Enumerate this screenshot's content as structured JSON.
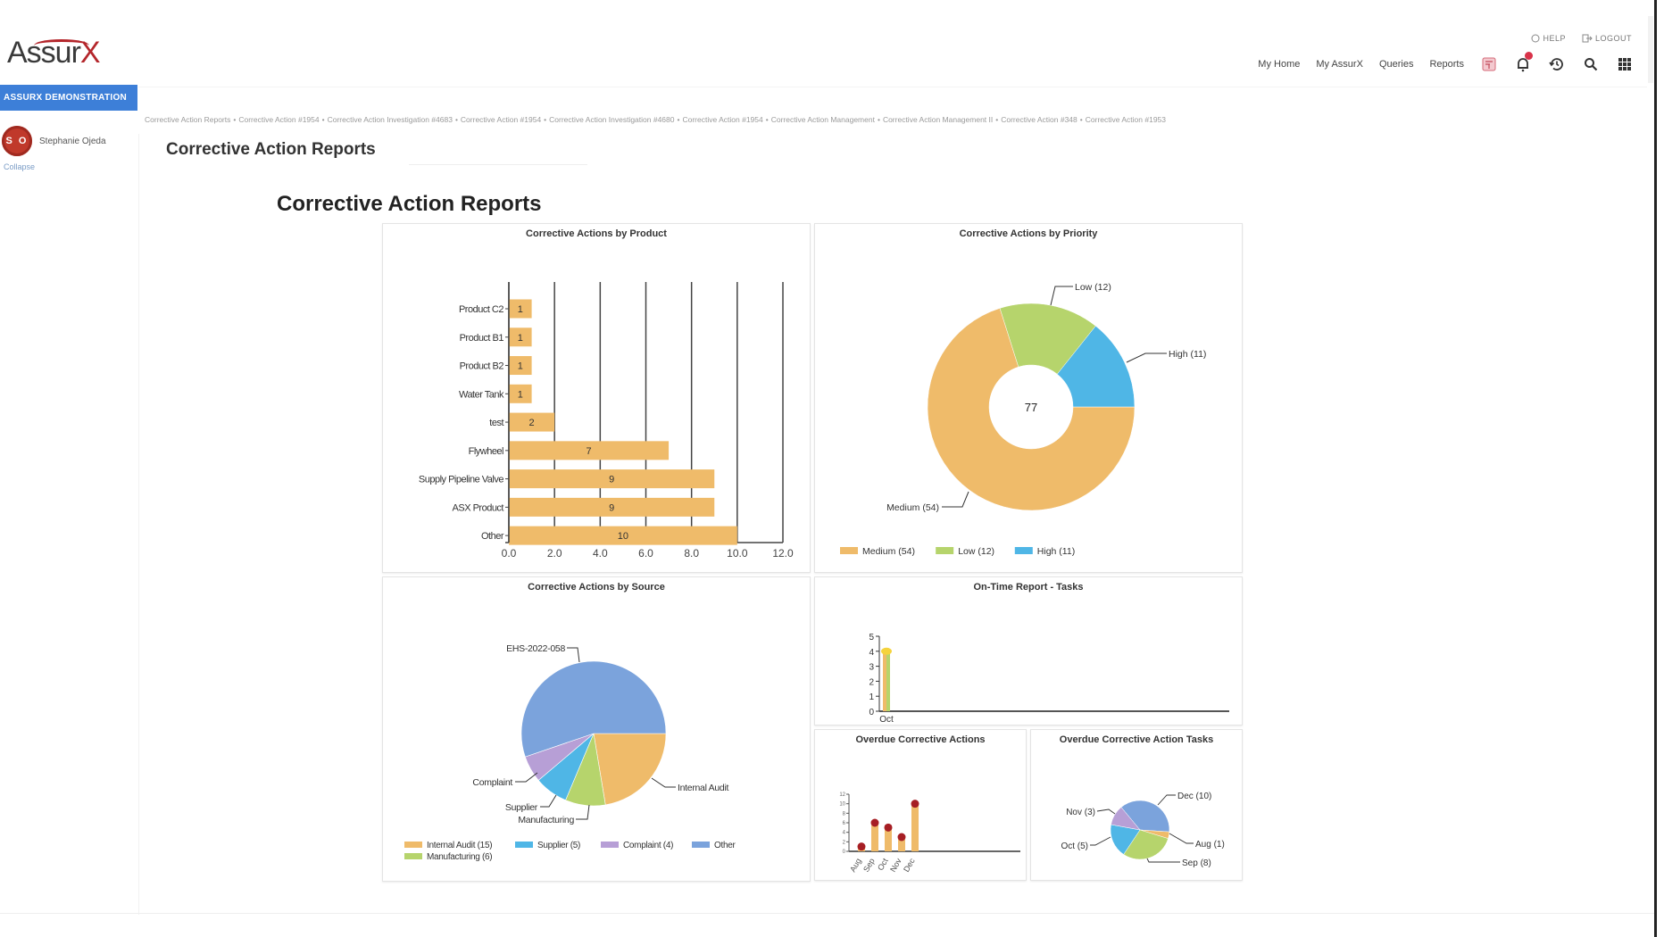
{
  "app": {
    "logo_text": "Assur",
    "logo_x": "X",
    "demo_button": "ASSURX DEMONSTRATION",
    "user": {
      "initials": "S O",
      "name": "Stephanie Ojeda"
    },
    "collapse_label": "Collapse",
    "top_links": {
      "help": "HELP",
      "logout": "LOGOUT"
    },
    "nav": [
      "My Home",
      "My AssurX",
      "Queries",
      "Reports"
    ],
    "icons": [
      "calendar-icon",
      "notifications-icon",
      "history-icon",
      "search-icon",
      "apps-grid-icon"
    ],
    "colors": {
      "brand_red": "#b4262b",
      "accent_blue": "#3d7fd8"
    }
  },
  "breadcrumb": [
    "Corrective Action Reports",
    "Corrective Action #1954",
    "Corrective Action Investigation #4683",
    "Corrective Action #1954",
    "Corrective Action Investigation #4680",
    "Corrective Action #1954",
    "Corrective Action Management",
    "Corrective Action Management II",
    "Corrective Action #348",
    "Corrective Action #1953"
  ],
  "page_title": "Corrective Action Reports",
  "report_title": "Corrective Action Reports",
  "chart_data": [
    {
      "id": "by_product",
      "type": "bar",
      "orientation": "horizontal",
      "title": "Corrective Actions by Product",
      "categories": [
        "Product C2",
        "Product B1",
        "Product B2",
        "Water Tank",
        "test",
        "Flywheel",
        "Supply Pipeline Valve",
        "ASX Product",
        "Other"
      ],
      "values": [
        1,
        1,
        1,
        1,
        2,
        7,
        9,
        9,
        10
      ],
      "xlim": [
        0,
        12
      ],
      "xticks": [
        "0.0",
        "2.0",
        "4.0",
        "6.0",
        "8.0",
        "10.0",
        "12.0"
      ],
      "grid": true,
      "color": "#efbb6a"
    },
    {
      "id": "by_priority",
      "type": "pie",
      "donut": true,
      "title": "Corrective Actions by Priority",
      "center_label": "77",
      "slices": [
        {
          "label": "Medium (54)",
          "value": 54,
          "color": "#efbb6a"
        },
        {
          "label": "Low (12)",
          "value": 12,
          "color": "#b6d46c"
        },
        {
          "label": "High (11)",
          "value": 11,
          "color": "#4fb6e6"
        }
      ],
      "legend": "bottom-left"
    },
    {
      "id": "by_source",
      "type": "pie",
      "title": "Corrective Actions by Source",
      "slices": [
        {
          "label": "Internal Audit",
          "legend": "Internal Audit (15)",
          "value": 15,
          "color": "#efbb6a"
        },
        {
          "label": "Manufacturing",
          "legend": "Manufacturing (6)",
          "value": 6,
          "color": "#b6d46c"
        },
        {
          "label": "Supplier",
          "legend": "Supplier (5)",
          "value": 5,
          "color": "#4fb6e6"
        },
        {
          "label": "Complaint",
          "legend": "Complaint (4)",
          "value": 4,
          "color": "#b79fd6"
        },
        {
          "label": "EHS-2022-058",
          "legend": "Other",
          "value": 37,
          "color": "#7ba3dc"
        }
      ],
      "legend": "bottom"
    },
    {
      "id": "on_time",
      "type": "bar",
      "title": "On-Time Report - Tasks",
      "categories": [
        "Oct"
      ],
      "series": [
        {
          "name": "series-1",
          "values": [
            4
          ],
          "color": "#efbb6a"
        },
        {
          "name": "series-2",
          "values": [
            4
          ],
          "color": "#b6d46c"
        }
      ],
      "marker_color": "#f5d33d",
      "ylim": [
        0,
        5
      ],
      "yticks": [
        "0",
        "1",
        "2",
        "3",
        "4",
        "5"
      ]
    },
    {
      "id": "overdue_ca",
      "type": "bar",
      "title": "Overdue Corrective Actions",
      "categories": [
        "Aug",
        "Sep",
        "Oct",
        "Nov",
        "Dec"
      ],
      "values": [
        1,
        6,
        5,
        3,
        10
      ],
      "color": "#efbb6a",
      "marker_color": "#a61e24",
      "ylim": [
        0,
        12
      ],
      "yticks": [
        "0",
        "2",
        "4",
        "6",
        "8",
        "10",
        "12"
      ]
    },
    {
      "id": "overdue_tasks",
      "type": "pie",
      "title": "Overdue Corrective Action Tasks",
      "slices": [
        {
          "label": "Dec (10)",
          "value": 10,
          "color": "#7ba3dc"
        },
        {
          "label": "Aug (1)",
          "value": 1,
          "color": "#efbb6a"
        },
        {
          "label": "Sep (8)",
          "value": 8,
          "color": "#b6d46c"
        },
        {
          "label": "Oct (5)",
          "value": 5,
          "color": "#4fb6e6"
        },
        {
          "label": "Nov (3)",
          "value": 3,
          "color": "#b79fd6"
        }
      ]
    }
  ]
}
